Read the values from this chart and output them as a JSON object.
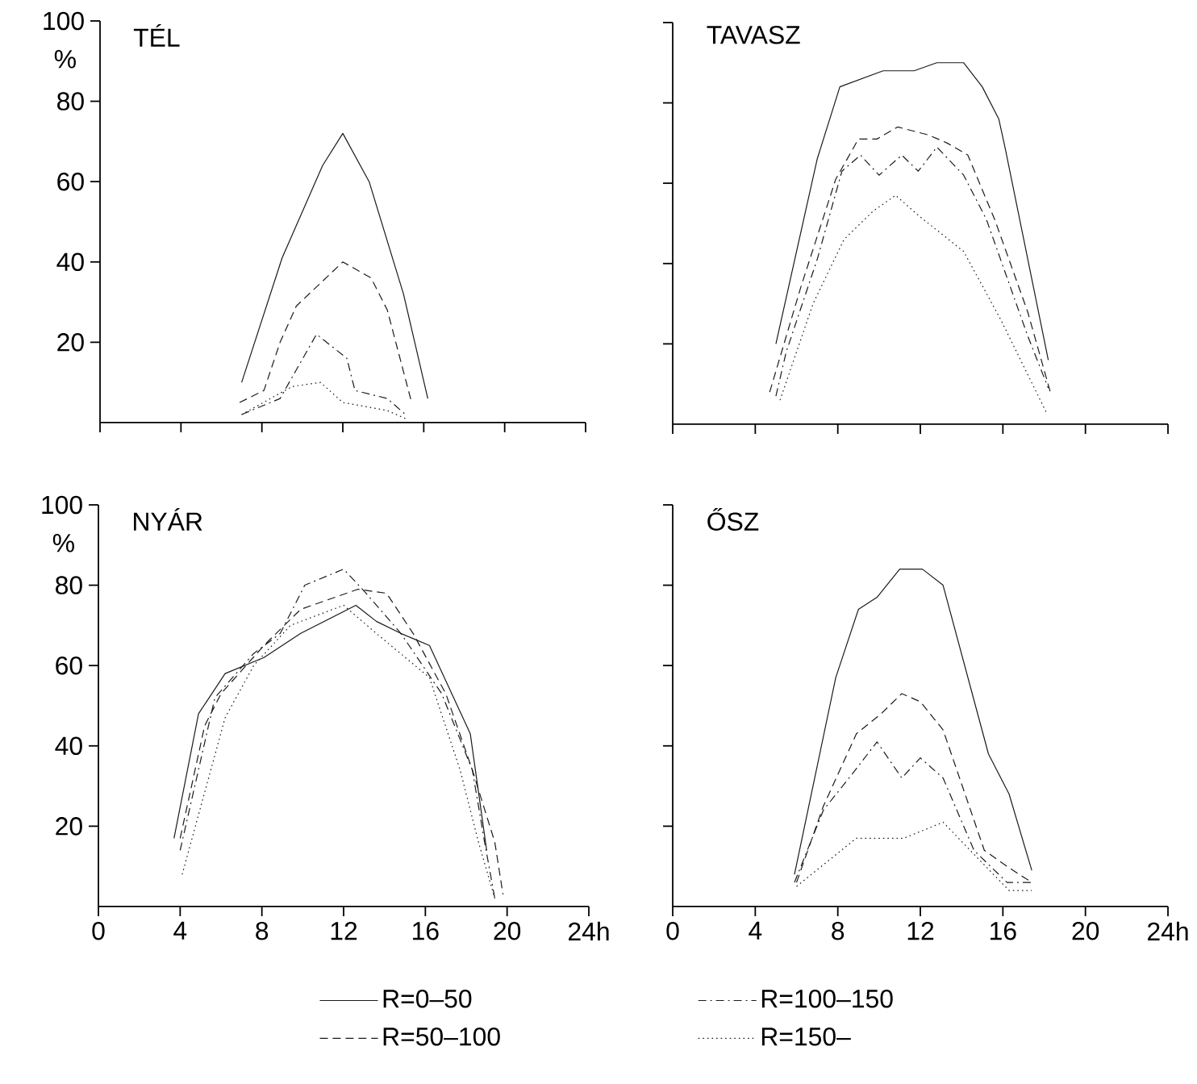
{
  "chart_data": [
    {
      "type": "line",
      "title": "TÉL",
      "ylabel": "%",
      "xlim": [
        0,
        24
      ],
      "ylim": [
        0,
        100
      ],
      "xticks": [
        0,
        4,
        8,
        12,
        16,
        20,
        24
      ],
      "yticks": [
        20,
        40,
        60,
        80,
        100
      ],
      "tick_labels": "y",
      "series": [
        {
          "color": "#1a1a1a",
          "line_style": "solid",
          "x": [
            7,
            9,
            11,
            12,
            13.3,
            15,
            16.2
          ],
          "values": [
            10,
            41,
            64,
            72,
            60,
            32,
            6
          ]
        },
        {
          "color": "#1a1a1a",
          "line_style": "dashed",
          "x": [
            6.9,
            8.1,
            8.9,
            9.7,
            12,
            13.4,
            14.2,
            15.4
          ],
          "values": [
            5,
            8,
            20,
            29,
            40,
            36,
            28,
            5
          ]
        },
        {
          "color": "#1a1a1a",
          "line_style": "dashdot",
          "x": [
            7,
            8.9,
            10.7,
            12.2,
            12.6,
            14.2,
            15.1
          ],
          "values": [
            2,
            6,
            22,
            16,
            8,
            6,
            2
          ]
        },
        {
          "color": "#1a1a1a",
          "line_style": "dotted",
          "x": [
            7,
            9.5,
            10.9,
            12,
            14.2,
            15.1
          ],
          "values": [
            2,
            9,
            10,
            5,
            3,
            1
          ]
        }
      ]
    },
    {
      "type": "line",
      "title": "TAVASZ",
      "xlim": [
        0,
        24
      ],
      "ylim": [
        0,
        100
      ],
      "xticks": [
        0,
        4,
        8,
        12,
        16,
        20,
        24
      ],
      "yticks": [
        20,
        40,
        60,
        80,
        100
      ],
      "tick_labels": false,
      "series": [
        {
          "color": "#1a1a1a",
          "line_style": "solid",
          "x": [
            5,
            7,
            8.1,
            10.2,
            11.7,
            12.8,
            14.1,
            15,
            15.8,
            16.1,
            18.2
          ],
          "values": [
            20,
            66,
            84,
            88,
            88,
            90,
            90,
            84,
            76,
            69,
            16
          ]
        },
        {
          "color": "#1a1a1a",
          "line_style": "dashed",
          "x": [
            4.7,
            6.2,
            7.9,
            9,
            9.9,
            10.9,
            12.4,
            13.3,
            14.3,
            15.6,
            17.2,
            18.3
          ],
          "values": [
            8,
            34,
            61,
            71,
            71,
            74,
            72,
            70,
            67,
            51,
            28,
            8
          ]
        },
        {
          "color": "#1a1a1a",
          "line_style": "dashdot",
          "x": [
            5,
            5.5,
            7,
            8.2,
            9.1,
            10,
            11.1,
            11.9,
            12.8,
            14.1,
            15.2,
            17.2,
            18.2
          ],
          "values": [
            7,
            18,
            41,
            63,
            67,
            62,
            67,
            63,
            69,
            62,
            51,
            22,
            9
          ]
        },
        {
          "color": "#1a1a1a",
          "line_style": "dotted",
          "x": [
            5.2,
            6.8,
            8.3,
            9.7,
            10.8,
            11.9,
            14.1,
            15.9,
            18.1
          ],
          "values": [
            6,
            30,
            46,
            53,
            57,
            52,
            43,
            26,
            3
          ]
        }
      ]
    },
    {
      "type": "line",
      "title": "NYÁR",
      "ylabel": "%",
      "xlim": [
        0,
        24
      ],
      "ylim": [
        0,
        100
      ],
      "xticks": [
        0,
        4,
        8,
        12,
        16,
        20,
        {
          "value": 24,
          "label": "24h"
        }
      ],
      "yticks": [
        20,
        40,
        60,
        80,
        100
      ],
      "legend": "bottom",
      "series": [
        {
          "name": "R=0–50",
          "color": "#1a1a1a",
          "line_style": "solid",
          "x": [
            3.7,
            4.9,
            6.2,
            8.1,
            9.9,
            12.6,
            13.6,
            14.8,
            16.2,
            18.2,
            19
          ],
          "values": [
            17,
            48,
            58,
            62,
            68,
            75,
            71,
            68,
            65,
            43,
            14
          ]
        },
        {
          "name": "R=50–100",
          "color": "#1a1a1a",
          "line_style": "dashed",
          "x": [
            4,
            5.2,
            6,
            8.1,
            9.9,
            12.7,
            14.1,
            15.4,
            17,
            18.3,
            19.4,
            19.8
          ],
          "values": [
            17,
            45,
            53,
            65,
            74,
            79,
            78,
            68,
            53,
            34,
            16,
            3
          ]
        },
        {
          "name": "R=100–150",
          "color": "#1a1a1a",
          "line_style": "dashdot",
          "x": [
            4,
            5.7,
            7.6,
            8.9,
            10.1,
            12,
            13.1,
            14.8,
            16.8,
            18.3,
            18.9,
            19.4
          ],
          "values": [
            14,
            52,
            63,
            68,
            80,
            84,
            78,
            68,
            53,
            34,
            16,
            2
          ]
        },
        {
          "name": "R=150–",
          "color": "#1a1a1a",
          "line_style": "dotted",
          "x": [
            4.1,
            6.2,
            7.6,
            9.4,
            12,
            13.6,
            16.2,
            17.7,
            18.6,
            19.4
          ],
          "values": [
            8,
            47,
            60,
            70,
            75,
            68,
            57,
            34,
            16,
            2
          ]
        }
      ]
    },
    {
      "type": "line",
      "title": "ŐSZ",
      "xlim": [
        0,
        24
      ],
      "ylim": [
        0,
        100
      ],
      "xticks": [
        0,
        4,
        8,
        12,
        16,
        20,
        {
          "value": 24,
          "label": "24h"
        }
      ],
      "yticks": [
        20,
        40,
        60,
        80,
        100
      ],
      "tick_labels": "x",
      "series": [
        {
          "color": "#1a1a1a",
          "line_style": "solid",
          "x": [
            5.9,
            7.9,
            9,
            9.9,
            11,
            12.1,
            13.1,
            15.3,
            16.3,
            17.4
          ],
          "values": [
            8,
            57,
            74,
            77,
            84,
            84,
            80,
            38,
            28,
            9
          ]
        },
        {
          "color": "#1a1a1a",
          "line_style": "dashed",
          "x": [
            6,
            7.3,
            8.9,
            10.1,
            11.1,
            12,
            13.1,
            15.1,
            16.2,
            17.4
          ],
          "values": [
            6,
            25,
            43,
            48,
            53,
            51,
            44,
            14,
            10,
            6
          ]
        },
        {
          "color": "#1a1a1a",
          "line_style": "dashdot",
          "x": [
            5.9,
            7.3,
            8.7,
            9.9,
            11.1,
            12,
            13.1,
            14.6,
            16.2,
            17.4
          ],
          "values": [
            6,
            24,
            33,
            41,
            32,
            37,
            32,
            14,
            6,
            6
          ]
        },
        {
          "color": "#1a1a1a",
          "line_style": "dotted",
          "x": [
            6,
            8.9,
            10.2,
            11.2,
            13.1,
            14.6,
            16.3,
            17.4
          ],
          "values": [
            5,
            17,
            17,
            17,
            21,
            13,
            4,
            4
          ]
        }
      ]
    }
  ]
}
